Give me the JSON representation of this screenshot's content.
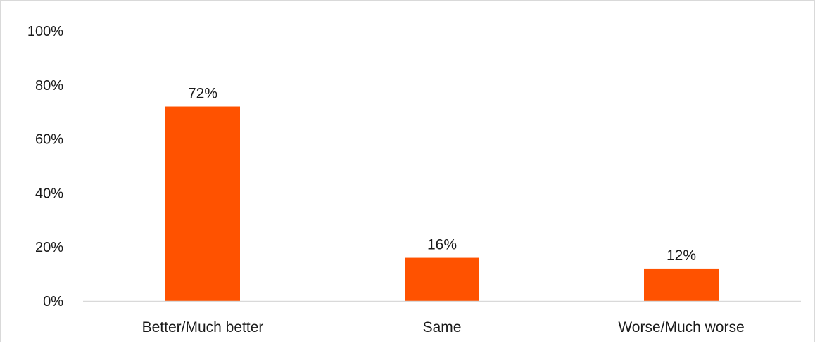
{
  "chart_data": {
    "type": "bar",
    "categories": [
      "Better/Much better",
      "Same",
      "Worse/Much worse"
    ],
    "values": [
      72,
      16,
      12
    ],
    "data_labels": [
      "72%",
      "16%",
      "12%"
    ],
    "y_ticks": [
      0,
      20,
      40,
      60,
      80,
      100
    ],
    "y_tick_labels": [
      "0%",
      "20%",
      "40%",
      "60%",
      "80%",
      "100%"
    ],
    "ylim": [
      0,
      100
    ],
    "title": "",
    "xlabel": "",
    "ylabel": "",
    "grid": false,
    "legend": "none",
    "colors": {
      "bar": "#FF5200",
      "axis": "#D9D9D9",
      "frame": "#D9D9D9",
      "text": "#1A1A1A"
    }
  }
}
